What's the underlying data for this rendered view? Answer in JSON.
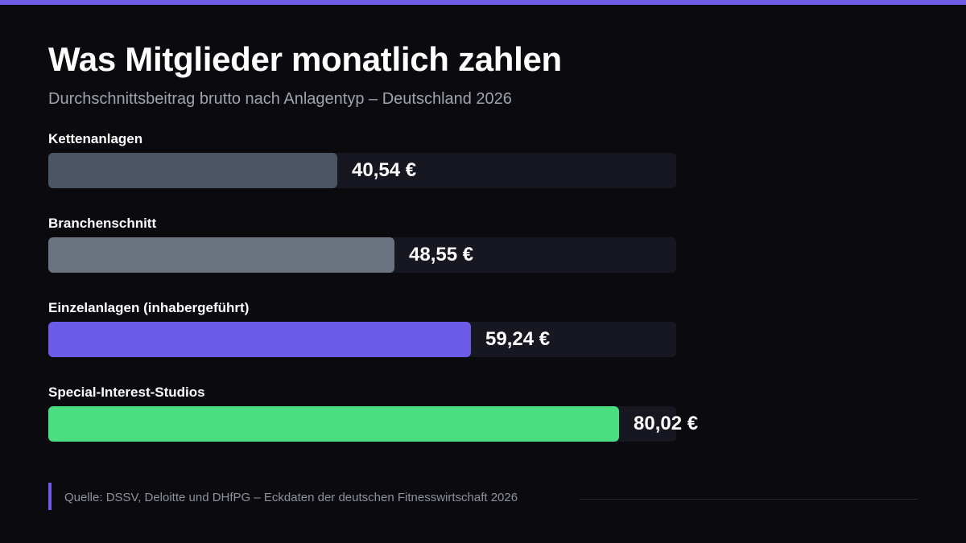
{
  "colors": {
    "background": "#0b0b0f",
    "accent": "#6c5ce7",
    "track": "#171721"
  },
  "header": {
    "title": "Was Mitglieder monatlich zahlen",
    "subtitle": "Durchschnittsbeitrag brutto nach Anlagentyp – Deutschland 2026"
  },
  "chart_data": {
    "type": "bar",
    "orientation": "horizontal",
    "title": "Was Mitglieder monatlich zahlen",
    "subtitle": "Durchschnittsbeitrag brutto nach Anlagentyp – Deutschland 2026",
    "unit": "€",
    "xlim": [
      0,
      88
    ],
    "grid": false,
    "categories": [
      "Kettenanlagen",
      "Branchenschnitt",
      "Einzelanlagen (inhabergeführt)",
      "Special-Interest-Studios"
    ],
    "values": [
      40.54,
      48.55,
      59.24,
      80.02
    ],
    "value_labels": [
      "40,54 €",
      "48,55 €",
      "59,24 €",
      "80,02 €"
    ],
    "colors": [
      "#4b5563",
      "#6b7280",
      "#6c5ce7",
      "#4ade80"
    ]
  },
  "footer": {
    "source": "Quelle: DSSV, Deloitte und DHfPG – Eckdaten der deutschen Fitnesswirtschaft 2026"
  }
}
